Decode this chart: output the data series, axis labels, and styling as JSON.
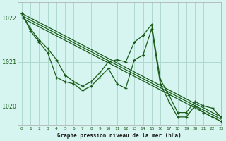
{
  "title": "Graphe pression niveau de la mer (hPa)",
  "background_color": "#d6f5f0",
  "grid_color": "#aed8d0",
  "line_color": "#1a5c1a",
  "xlim": [
    -0.5,
    23
  ],
  "ylim": [
    1019.55,
    1022.35
  ],
  "yticks": [
    1020,
    1021,
    1022
  ],
  "xticks": [
    0,
    1,
    2,
    3,
    4,
    5,
    6,
    7,
    8,
    9,
    10,
    11,
    12,
    13,
    14,
    15,
    16,
    17,
    18,
    19,
    20,
    21,
    22,
    23
  ],
  "series": [
    {
      "x": [
        0,
        1,
        2,
        3,
        4,
        5,
        6,
        7,
        8,
        9,
        10,
        11,
        12,
        13,
        14,
        15,
        16,
        17,
        18,
        19,
        20,
        21,
        22,
        23
      ],
      "y": [
        1022.1,
        1021.75,
        1021.5,
        1021.3,
        1021.05,
        1020.7,
        1020.55,
        1020.45,
        1020.55,
        1020.75,
        1021.0,
        1021.05,
        1021.0,
        1021.45,
        1021.6,
        1021.85,
        1020.6,
        1020.25,
        1019.85,
        1019.85,
        1020.1,
        1020.0,
        1019.95,
        1019.75
      ],
      "with_markers": true
    },
    {
      "x": [
        0,
        1,
        2,
        3,
        4,
        5,
        6,
        7,
        8,
        9,
        10,
        11,
        12,
        13,
        14,
        15,
        16,
        17,
        18,
        19,
        20,
        21,
        22,
        23
      ],
      "y": [
        1022.1,
        1021.7,
        1021.45,
        1021.2,
        1020.65,
        1020.55,
        1020.5,
        1020.35,
        1020.45,
        1020.65,
        1020.85,
        1020.5,
        1020.4,
        1021.05,
        1021.15,
        1021.75,
        1020.5,
        1020.1,
        1019.75,
        1019.75,
        1020.0,
        1019.85,
        1019.75,
        1019.65
      ],
      "with_markers": true
    },
    {
      "x": [
        0,
        23
      ],
      "y": [
        1022.1,
        1019.75
      ],
      "with_markers": false
    },
    {
      "x": [
        0,
        23
      ],
      "y": [
        1022.05,
        1019.7
      ],
      "with_markers": false
    },
    {
      "x": [
        0,
        23
      ],
      "y": [
        1022.0,
        1019.65
      ],
      "with_markers": false
    }
  ]
}
